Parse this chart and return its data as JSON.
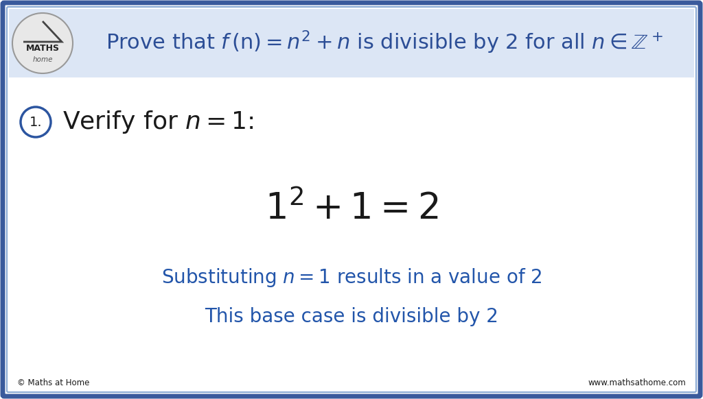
{
  "bg_color": "#ffffff",
  "border_color_outer": "#3a5a9c",
  "border_color_inner": "#8aaad4",
  "title_text_color": "#2c4e96",
  "blue_text_color": "#2255aa",
  "dark_text_color": "#1a1a1a",
  "logo_circle_color": "#aaaaaa",
  "logo_text_color": "#333333",
  "footer_left": "© Maths at Home",
  "footer_right": "www.mathsathome.com",
  "circle_step_color": "#2c55a0"
}
